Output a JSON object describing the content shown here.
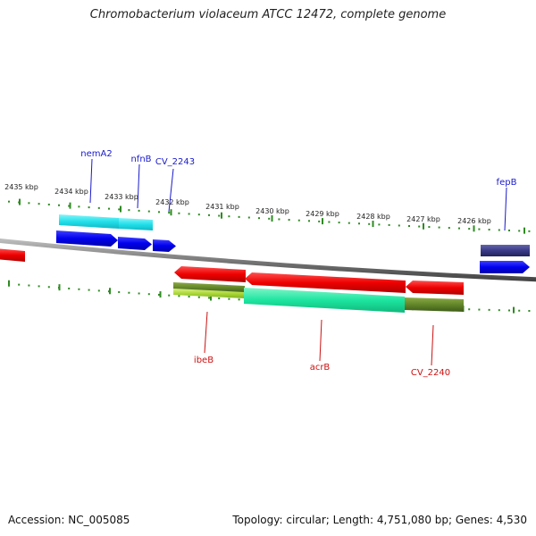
{
  "title": "Chromobacterium violaceum ATCC 12472, complete genome",
  "footer": {
    "accession": "Accession: NC_005085",
    "topology": "Topology: circular; Length: 4,751,080 bp; Genes: 4,530"
  },
  "ruler_labels": [
    "2435 kbp",
    "2434 kbp",
    "2433 kbp",
    "2432 kbp",
    "2431 kbp",
    "2430 kbp",
    "2429 kbp",
    "2428 kbp",
    "2427 kbp",
    "2426 kbp"
  ],
  "gene_labels": {
    "forward": [
      "nemA2",
      "nfnB",
      "CV_2243",
      "fepB"
    ],
    "reverse": [
      "ibeB",
      "acrB",
      "CV_2240"
    ]
  },
  "colors": {
    "forward_label": "#1a1acc",
    "reverse_label": "#cc1111",
    "tick": "#2e8b22",
    "backbone": "#888888",
    "cds_forward": "#1a1aff",
    "cds_reverse": "#ff1a1a",
    "hit_cyan": "#2ee6ee",
    "hit_teal": "#22e8aa",
    "hit_olive": "#6b8c22",
    "hit_lime": "#aadd33",
    "hit_navy": "#3a3a8c"
  },
  "icons": {
    "forward_arrow": "right-arrow-icon",
    "reverse_arrow": "left-arrow-icon"
  }
}
